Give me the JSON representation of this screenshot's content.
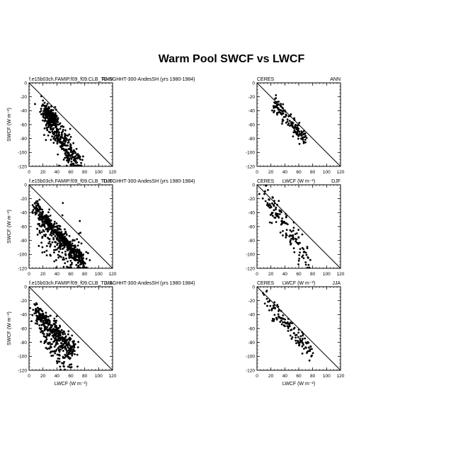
{
  "title": "Warm Pool SWCF vs LWCF",
  "axes": {
    "xlabel": "LWCF  (W m⁻²)",
    "ylabel": "SWCF  (W m⁻²)",
    "xlim": [
      0,
      120
    ],
    "ylim": [
      -120,
      0
    ],
    "xticks": [
      "0",
      "20",
      "40",
      "60",
      "80",
      "100",
      "120"
    ],
    "yticks": [
      "0",
      "-20",
      "-40",
      "-60",
      "-80",
      "-100",
      "-120"
    ]
  },
  "chart_data": [
    {
      "type": "scatter",
      "left_label": "f.e15b03ch.FAMIP.f09_f09.CLB_TD-SGHHT-300-AndesSH (yrs 1980-1984)",
      "right_label": "ANN",
      "reference_line": {
        "x": [
          0,
          120
        ],
        "y": [
          0,
          -120
        ]
      },
      "clusters": [
        {
          "x": [
            20,
            70
          ],
          "y": [
            -36,
            -120
          ],
          "n": 380,
          "spread": 9
        },
        {
          "x": [
            22,
            40
          ],
          "y": [
            -38,
            -55
          ],
          "n": 120,
          "spread": 5
        }
      ]
    },
    {
      "type": "scatter",
      "left_label": "CERES",
      "right_label": "ANN",
      "reference_line": {
        "x": [
          0,
          120
        ],
        "y": [
          0,
          -120
        ]
      },
      "clusters": [
        {
          "x": [
            25,
            70
          ],
          "y": [
            -28,
            -85
          ],
          "n": 140,
          "spread": 5
        }
      ]
    },
    {
      "type": "scatter",
      "left_label": "f.e15b03ch.FAMIP.f09_f09.CLB_TD-SGHHT-300-AndesSH (yrs 1980-1984)",
      "right_label": "DJF",
      "reference_line": {
        "x": [
          0,
          120
        ],
        "y": [
          0,
          -120
        ]
      },
      "clusters": [
        {
          "x": [
            8,
            80
          ],
          "y": [
            -30,
            -115
          ],
          "n": 420,
          "spread": 5
        },
        {
          "x": [
            15,
            75
          ],
          "y": [
            -60,
            -110
          ],
          "n": 220,
          "spread": 14
        }
      ]
    },
    {
      "type": "scatter",
      "left_label": "CERES",
      "right_label": "DJF",
      "center_label": "LWCF  (W m⁻²)",
      "reference_line": {
        "x": [
          0,
          120
        ],
        "y": [
          0,
          -120
        ]
      },
      "clusters": [
        {
          "x": [
            10,
            75
          ],
          "y": [
            -15,
            -110
          ],
          "n": 140,
          "spread": 8
        }
      ]
    },
    {
      "type": "scatter",
      "left_label": "f.e15b03ch.FAMIP.f09_f09.CLB_TD-SGHHT-300-AndesSH (yrs 1980-1984)",
      "right_label": "JJA",
      "reference_line": {
        "x": [
          0,
          120
        ],
        "y": [
          0,
          -120
        ]
      },
      "clusters": [
        {
          "x": [
            8,
            65
          ],
          "y": [
            -35,
            -90
          ],
          "n": 330,
          "spread": 7
        },
        {
          "x": [
            15,
            60
          ],
          "y": [
            -60,
            -110
          ],
          "n": 120,
          "spread": 10
        }
      ]
    },
    {
      "type": "scatter",
      "left_label": "CERES",
      "right_label": "JJA",
      "center_label": "LWCF  (W m⁻²)",
      "reference_line": {
        "x": [
          0,
          120
        ],
        "y": [
          0,
          -120
        ]
      },
      "clusters": [
        {
          "x": [
            10,
            80
          ],
          "y": [
            -15,
            -100
          ],
          "n": 130,
          "spread": 6
        }
      ]
    }
  ]
}
